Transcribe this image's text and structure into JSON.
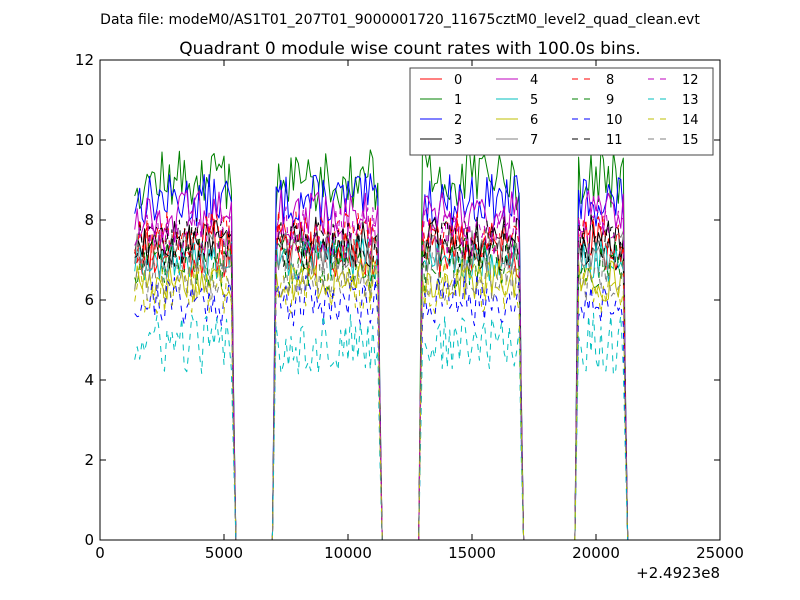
{
  "figure": {
    "suptitle": "Data file: modeM0/AS1T01_207T01_9000001720_11675cztM0_level2_quad_clean.evt"
  },
  "chart_data": {
    "type": "line",
    "title": "Quadrant 0 module wise count rates with 100.0s bins.",
    "xlabel": "",
    "ylabel": "",
    "x_offset_label": "+2.4923e8",
    "xlim": [
      0,
      25000
    ],
    "ylim": [
      0,
      12
    ],
    "xticks": [
      0,
      5000,
      10000,
      15000,
      20000,
      25000
    ],
    "yticks": [
      0,
      2,
      4,
      6,
      8,
      10,
      12
    ],
    "legend_position": "top-right",
    "legend_columns": 4,
    "bin_size_s": 100,
    "active_segments": [
      [
        1400,
        5300
      ],
      [
        7100,
        11200
      ],
      [
        13000,
        16900
      ],
      [
        19300,
        21100
      ]
    ],
    "gap_value": 0,
    "series": [
      {
        "name": "0",
        "color": "#ff0000",
        "dash": "solid",
        "mean": 7.3,
        "noise": 0.35,
        "seed": 11
      },
      {
        "name": "1",
        "color": "#008000",
        "dash": "solid",
        "mean": 9.0,
        "noise": 0.35,
        "seed": 12
      },
      {
        "name": "2",
        "color": "#0000ff",
        "dash": "solid",
        "mean": 8.5,
        "noise": 0.3,
        "seed": 13
      },
      {
        "name": "3",
        "color": "#000000",
        "dash": "solid",
        "mean": 7.5,
        "noise": 0.3,
        "seed": 14
      },
      {
        "name": "4",
        "color": "#bf00bf",
        "dash": "solid",
        "mean": 8.1,
        "noise": 0.3,
        "seed": 15
      },
      {
        "name": "5",
        "color": "#00bfbf",
        "dash": "solid",
        "mean": 7.0,
        "noise": 0.25,
        "seed": 16
      },
      {
        "name": "6",
        "color": "#bfbf00",
        "dash": "solid",
        "mean": 6.5,
        "noise": 0.25,
        "seed": 17
      },
      {
        "name": "7",
        "color": "#808080",
        "dash": "solid",
        "mean": 7.2,
        "noise": 0.25,
        "seed": 18
      },
      {
        "name": "8",
        "color": "#ff0000",
        "dash": "dashed",
        "mean": 7.6,
        "noise": 0.3,
        "seed": 19
      },
      {
        "name": "9",
        "color": "#008000",
        "dash": "dashed",
        "mean": 6.9,
        "noise": 0.3,
        "seed": 20
      },
      {
        "name": "10",
        "color": "#0000ff",
        "dash": "dashed",
        "mean": 6.0,
        "noise": 0.3,
        "seed": 21
      },
      {
        "name": "11",
        "color": "#000000",
        "dash": "dashed",
        "mean": 7.4,
        "noise": 0.3,
        "seed": 22
      },
      {
        "name": "12",
        "color": "#bf00bf",
        "dash": "dashed",
        "mean": 7.7,
        "noise": 0.3,
        "seed": 23
      },
      {
        "name": "13",
        "color": "#00bfbf",
        "dash": "dashed",
        "mean": 4.9,
        "noise": 0.35,
        "seed": 24
      },
      {
        "name": "14",
        "color": "#bfbf00",
        "dash": "dashed",
        "mean": 6.3,
        "noise": 0.3,
        "seed": 25
      },
      {
        "name": "15",
        "color": "#808080",
        "dash": "dashed",
        "mean": 6.6,
        "noise": 0.3,
        "seed": 26
      }
    ]
  }
}
